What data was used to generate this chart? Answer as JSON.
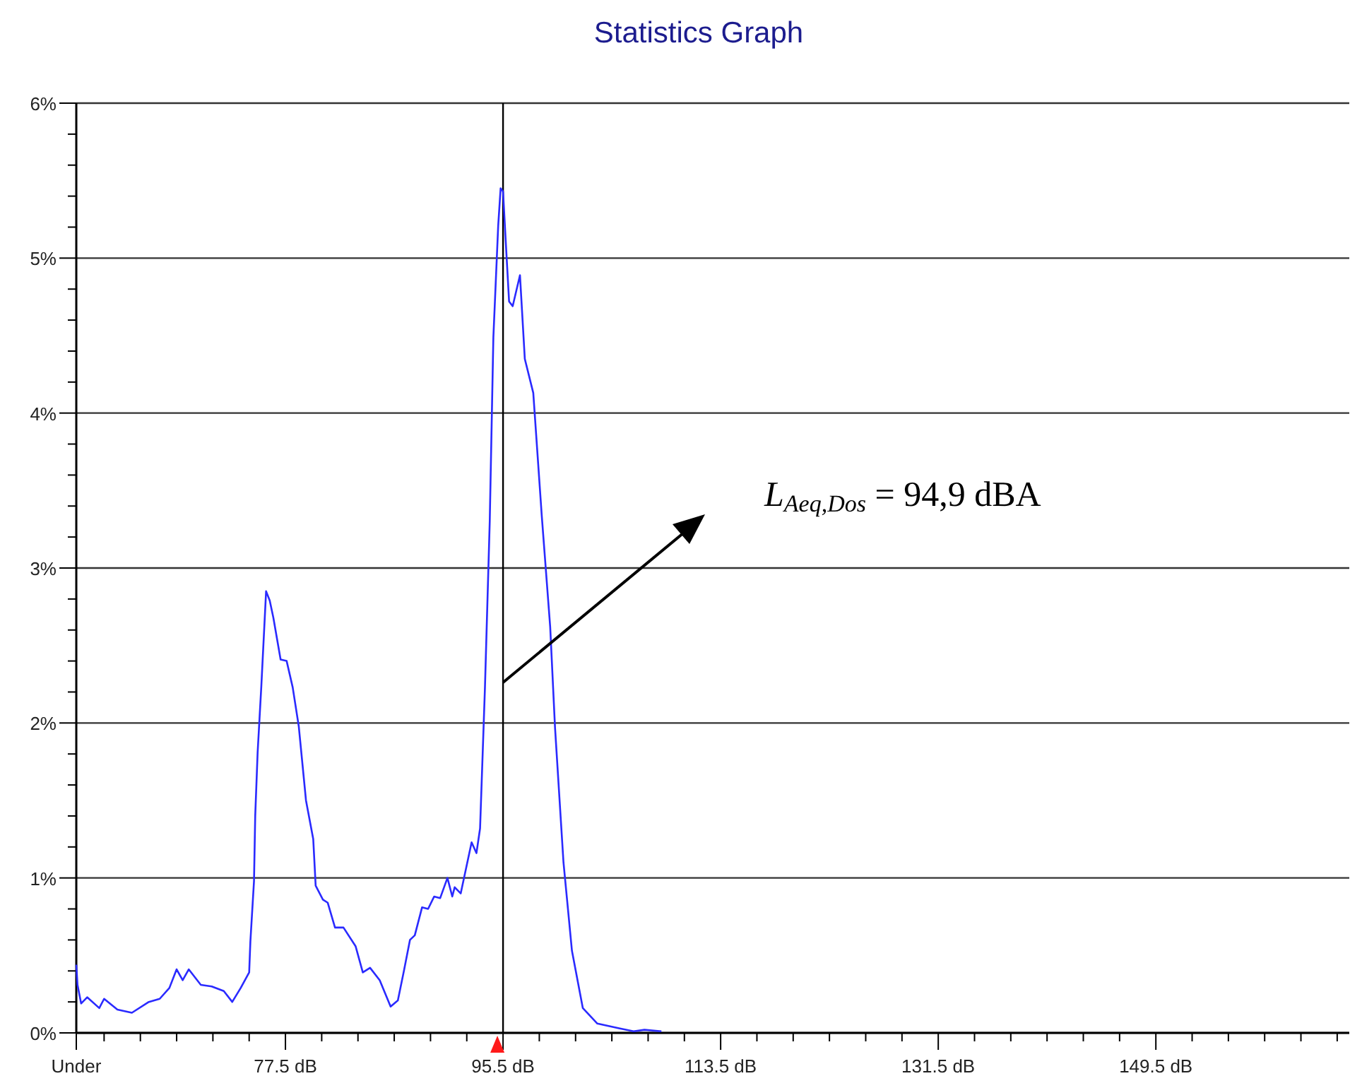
{
  "chart_data": {
    "type": "line",
    "title": "Statistics Graph",
    "x": [
      60.2,
      60.3,
      60.6,
      61.1,
      62.1,
      62.5,
      63.6,
      64.8,
      66.2,
      67.1,
      67.9,
      68.5,
      69.0,
      69.5,
      70.5,
      71.4,
      72.4,
      73.1,
      73.8,
      74.5,
      74.6,
      74.9,
      75.0,
      75.2,
      75.5,
      75.9,
      76.2,
      76.5,
      77.1,
      77.6,
      78.1,
      78.6,
      79.2,
      79.8,
      80.0,
      80.6,
      81.0,
      81.6,
      82.3,
      83.3,
      83.9,
      84.5,
      85.3,
      86.2,
      86.8,
      87.3,
      87.8,
      88.2,
      88.8,
      89.3,
      89.8,
      90.3,
      90.9,
      91.3,
      91.5,
      92.0,
      92.9,
      93.3,
      93.6,
      94.0,
      94.4,
      94.7,
      95.1,
      95.3,
      95.5,
      95.7,
      96.0,
      96.3,
      96.9,
      97.3,
      98.0,
      98.7,
      99.4,
      99.8,
      100.5,
      101.2,
      102.1,
      103.3,
      105.1,
      106.3,
      107.2,
      108.6
    ],
    "series": [
      {
        "color": "#2a2aff",
        "values": [
          0.44,
          0.31,
          0.19,
          0.23,
          0.16,
          0.22,
          0.15,
          0.13,
          0.2,
          0.22,
          0.29,
          0.41,
          0.34,
          0.41,
          0.31,
          0.3,
          0.27,
          0.2,
          0.29,
          0.39,
          0.59,
          0.98,
          1.4,
          1.81,
          2.23,
          2.85,
          2.79,
          2.68,
          2.41,
          2.4,
          2.23,
          1.98,
          1.5,
          1.25,
          0.95,
          0.86,
          0.84,
          0.68,
          0.68,
          0.56,
          0.39,
          0.42,
          0.34,
          0.17,
          0.21,
          0.4,
          0.6,
          0.63,
          0.81,
          0.8,
          0.88,
          0.87,
          1.0,
          0.88,
          0.94,
          0.9,
          1.23,
          1.16,
          1.32,
          2.22,
          3.3,
          4.49,
          5.21,
          5.45,
          5.43,
          5.14,
          4.72,
          4.69,
          4.89,
          4.35,
          4.13,
          3.34,
          2.62,
          1.97,
          1.1,
          0.53,
          0.16,
          0.06,
          0.03,
          0.01,
          0.02,
          0.01
        ]
      }
    ],
    "xlim": [
      60.2,
      165.5
    ],
    "xticks": [
      {
        "value": 60.2,
        "label": "Under"
      },
      {
        "value": 62.5,
        "label": null
      },
      {
        "value": 65.5,
        "label": null
      },
      {
        "value": 68.5,
        "label": null
      },
      {
        "value": 71.5,
        "label": null
      },
      {
        "value": 74.5,
        "label": null
      },
      {
        "value": 77.5,
        "label": "77.5 dB"
      },
      {
        "value": 80.5,
        "label": null
      },
      {
        "value": 83.5,
        "label": null
      },
      {
        "value": 86.5,
        "label": null
      },
      {
        "value": 89.5,
        "label": null
      },
      {
        "value": 92.5,
        "label": null
      },
      {
        "value": 95.5,
        "label": "95.5 dB"
      },
      {
        "value": 98.5,
        "label": null
      },
      {
        "value": 101.5,
        "label": null
      },
      {
        "value": 104.5,
        "label": null
      },
      {
        "value": 107.5,
        "label": null
      },
      {
        "value": 110.5,
        "label": null
      },
      {
        "value": 113.5,
        "label": "113.5 dB"
      },
      {
        "value": 116.5,
        "label": null
      },
      {
        "value": 119.5,
        "label": null
      },
      {
        "value": 122.5,
        "label": null
      },
      {
        "value": 125.5,
        "label": null
      },
      {
        "value": 128.5,
        "label": null
      },
      {
        "value": 131.5,
        "label": "131.5 dB"
      },
      {
        "value": 134.5,
        "label": null
      },
      {
        "value": 137.5,
        "label": null
      },
      {
        "value": 140.5,
        "label": null
      },
      {
        "value": 143.5,
        "label": null
      },
      {
        "value": 146.5,
        "label": null
      },
      {
        "value": 149.5,
        "label": "149.5 dB"
      },
      {
        "value": 152.5,
        "label": null
      },
      {
        "value": 155.5,
        "label": null
      },
      {
        "value": 158.5,
        "label": null
      },
      {
        "value": 161.5,
        "label": null
      },
      {
        "value": 164.5,
        "label": null
      }
    ],
    "ylim": [
      0,
      6
    ],
    "yticks": [
      {
        "value": 0,
        "label": "0%"
      },
      {
        "value": 0.2,
        "label": null
      },
      {
        "value": 0.4,
        "label": null
      },
      {
        "value": 0.6,
        "label": null
      },
      {
        "value": 0.8,
        "label": null
      },
      {
        "value": 1,
        "label": "1%"
      },
      {
        "value": 1.2,
        "label": null
      },
      {
        "value": 1.4,
        "label": null
      },
      {
        "value": 1.6,
        "label": null
      },
      {
        "value": 1.8,
        "label": null
      },
      {
        "value": 2,
        "label": "2%"
      },
      {
        "value": 2.2,
        "label": null
      },
      {
        "value": 2.4,
        "label": null
      },
      {
        "value": 2.6,
        "label": null
      },
      {
        "value": 2.8,
        "label": null
      },
      {
        "value": 3,
        "label": "3%"
      },
      {
        "value": 3.2,
        "label": null
      },
      {
        "value": 3.4,
        "label": null
      },
      {
        "value": 3.6,
        "label": null
      },
      {
        "value": 3.8,
        "label": null
      },
      {
        "value": 4,
        "label": "4%"
      },
      {
        "value": 4.2,
        "label": null
      },
      {
        "value": 4.4,
        "label": null
      },
      {
        "value": 4.6,
        "label": null
      },
      {
        "value": 4.8,
        "label": null
      },
      {
        "value": 5,
        "label": "5%"
      },
      {
        "value": 5.2,
        "label": null
      },
      {
        "value": 5.4,
        "label": null
      },
      {
        "value": 5.6,
        "label": null
      },
      {
        "value": 5.8,
        "label": null
      },
      {
        "value": 6,
        "label": "6%"
      }
    ],
    "grid": "y",
    "ref_lines": [
      {
        "axis": "x",
        "value": 95.5,
        "color": "#000000"
      }
    ],
    "annotations": [
      "L$_{Aeq,Dos}$ = 94,9 dBA"
    ],
    "marker": "none",
    "line_style": "solid"
  }
}
